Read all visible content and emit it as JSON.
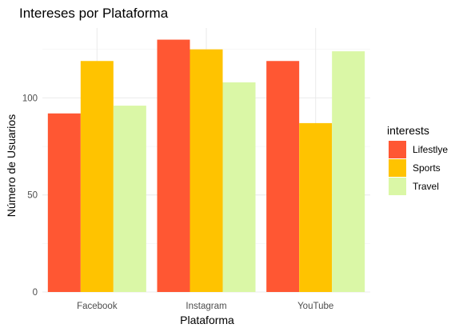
{
  "chart_data": {
    "type": "bar",
    "title": "Intereses por Plataforma",
    "xlabel": "Plataforma",
    "ylabel": "Número de Usuarios",
    "categories": [
      "Facebook",
      "Instagram",
      "YouTube"
    ],
    "series": [
      {
        "name": "Lifestlye",
        "color": "#ff5733",
        "values": [
          92,
          130,
          119
        ]
      },
      {
        "name": "Sports",
        "color": "#ffc300",
        "values": [
          119,
          125,
          87
        ]
      },
      {
        "name": "Travel",
        "color": "#daf7a6",
        "values": [
          96,
          108,
          124
        ]
      }
    ],
    "ylim": [
      0,
      136
    ],
    "yticks": [
      0,
      50,
      100
    ],
    "legend_title": "interests",
    "legend_position": "right",
    "grid": true
  }
}
